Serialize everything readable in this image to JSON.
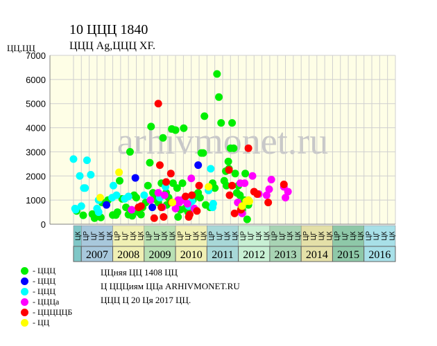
{
  "header": {
    "title": "10 ЦЦЦ 1840",
    "subtitle": "ЦЦЦ Ag,ЦЦЦ XF.",
    "yunit": "ЦЦ,ЦЦ"
  },
  "watermark": "arhivmonet.ru",
  "legend": [
    {
      "label": "- ЦЦЦ",
      "color": "#00ee00"
    },
    {
      "label": "- ЦЦЦ",
      "color": "#0000ff"
    },
    {
      "label": "- ЦЦЦ",
      "color": "#00ffff"
    },
    {
      "label": "- ЦЦЦа",
      "color": "#ff00ff"
    },
    {
      "label": "- ЦЦЦЦЦБ",
      "color": "#ff0000"
    },
    {
      "label": "- ЦЦ",
      "color": "#ffff00"
    }
  ],
  "info": [
    "ЦЦняя ЦЦ 1408 ЦЦ",
    "Ц ЦЦЦиям ЦЦа ARHIVMONET.RU",
    "ЦЦЦ Ц 20 Ця 2017 ЦЦ."
  ],
  "chart_data": {
    "type": "scatter",
    "title": "10 ЦЦЦ 1840",
    "subtitle": "ЦЦЦ Ag,ЦЦЦ XF.",
    "ylabel": "ЦЦ,ЦЦ",
    "ylim": [
      0,
      7000
    ],
    "yticks": [
      0,
      1000,
      2000,
      3000,
      4000,
      5000,
      6000,
      7000
    ],
    "grid": true,
    "xlim": [
      2006.0,
      2017.0
    ],
    "quarter_labels": [
      "ЦК",
      "ЦР",
      "ЦГ",
      "ЦК"
    ],
    "quarter_label_start": 2006.75,
    "year_bands": [
      {
        "year": "",
        "start": 2006.75,
        "end": 2007.0,
        "color": "#7fc7c7"
      },
      {
        "year": "2007",
        "start": 2007.0,
        "end": 2008.0,
        "color": "#a8c8dc"
      },
      {
        "year": "2008",
        "start": 2008.0,
        "end": 2009.0,
        "color": "#f0f0b4"
      },
      {
        "year": "2009",
        "start": 2009.0,
        "end": 2010.0,
        "color": "#b8e0b4"
      },
      {
        "year": "2010",
        "start": 2010.0,
        "end": 2011.0,
        "color": "#f0f0b4"
      },
      {
        "year": "2011",
        "start": 2011.0,
        "end": 2012.0,
        "color": "#a8d8d8"
      },
      {
        "year": "2012",
        "start": 2012.0,
        "end": 2013.0,
        "color": "#c8f0d4"
      },
      {
        "year": "2013",
        "start": 2013.0,
        "end": 2014.0,
        "color": "#a8d4b4"
      },
      {
        "year": "2014",
        "start": 2014.0,
        "end": 2015.0,
        "color": "#e4e0a8"
      },
      {
        "year": "2015",
        "start": 2015.0,
        "end": 2016.0,
        "color": "#8ec8a8"
      },
      {
        "year": "2016",
        "start": 2016.0,
        "end": 2017.0,
        "color": "#a8e0e8"
      }
    ],
    "series": [
      {
        "name": "- ЦЦЦ",
        "color": "#00ee00",
        "points": [
          [
            2006.85,
            550
          ],
          [
            2007.06,
            370
          ],
          [
            2007.35,
            420
          ],
          [
            2007.42,
            250
          ],
          [
            2007.62,
            280
          ],
          [
            2007.66,
            900
          ],
          [
            2007.85,
            1000
          ],
          [
            2008.0,
            380
          ],
          [
            2008.1,
            380
          ],
          [
            2008.15,
            500
          ],
          [
            2008.22,
            1800
          ],
          [
            2008.3,
            1050
          ],
          [
            2008.42,
            700
          ],
          [
            2008.5,
            400
          ],
          [
            2008.55,
            3000
          ],
          [
            2008.62,
            350
          ],
          [
            2008.68,
            1200
          ],
          [
            2008.75,
            1100
          ],
          [
            2008.82,
            500
          ],
          [
            2008.9,
            400
          ],
          [
            2008.95,
            700
          ],
          [
            2009.05,
            900
          ],
          [
            2009.12,
            1600
          ],
          [
            2009.18,
            2550
          ],
          [
            2009.22,
            4050
          ],
          [
            2009.28,
            1300
          ],
          [
            2009.32,
            1050
          ],
          [
            2009.45,
            900
          ],
          [
            2009.55,
            1700
          ],
          [
            2009.6,
            3580
          ],
          [
            2009.7,
            1300
          ],
          [
            2009.72,
            800
          ],
          [
            2009.78,
            1100
          ],
          [
            2009.88,
            3950
          ],
          [
            2009.92,
            1700
          ],
          [
            2010.0,
            3900
          ],
          [
            2010.05,
            1500
          ],
          [
            2010.08,
            300
          ],
          [
            2010.15,
            600
          ],
          [
            2010.22,
            1700
          ],
          [
            2010.26,
            3980
          ],
          [
            2010.3,
            650
          ],
          [
            2010.4,
            500
          ],
          [
            2010.55,
            1000
          ],
          [
            2010.62,
            1200
          ],
          [
            2010.72,
            1300
          ],
          [
            2010.78,
            1100
          ],
          [
            2010.82,
            2950
          ],
          [
            2010.88,
            2950
          ],
          [
            2010.92,
            4480
          ],
          [
            2010.96,
            800
          ],
          [
            2011.1,
            700
          ],
          [
            2011.18,
            1700
          ],
          [
            2011.25,
            1500
          ],
          [
            2011.32,
            6230
          ],
          [
            2011.38,
            5270
          ],
          [
            2011.45,
            4200
          ],
          [
            2011.55,
            1800
          ],
          [
            2011.6,
            2200
          ],
          [
            2011.62,
            1600
          ],
          [
            2011.68,
            2600
          ],
          [
            2011.7,
            2300
          ],
          [
            2011.75,
            3150
          ],
          [
            2011.8,
            4200
          ],
          [
            2011.85,
            3150
          ],
          [
            2011.9,
            2100
          ],
          [
            2011.95,
            1300
          ],
          [
            2012.0,
            1600
          ],
          [
            2012.05,
            1200
          ],
          [
            2012.1,
            700
          ],
          [
            2012.12,
            600
          ],
          [
            2012.18,
            1000
          ],
          [
            2012.22,
            2100
          ],
          [
            2012.28,
            200
          ],
          [
            2012.32,
            800
          ]
        ]
      },
      {
        "name": "- ЦЦЦ",
        "color": "#0000ff",
        "points": [
          [
            2007.8,
            800
          ],
          [
            2008.72,
            1920
          ],
          [
            2009.26,
            700
          ],
          [
            2010.72,
            2450
          ]
        ]
      },
      {
        "name": "- ЦЦЦ",
        "color": "#00ffff",
        "points": [
          [
            2006.75,
            2700
          ],
          [
            2006.8,
            650
          ],
          [
            2006.82,
            600
          ],
          [
            2006.95,
            2000
          ],
          [
            2007.0,
            750
          ],
          [
            2007.08,
            1500
          ],
          [
            2007.12,
            1500
          ],
          [
            2007.18,
            2650
          ],
          [
            2007.3,
            2050
          ],
          [
            2007.5,
            650
          ],
          [
            2007.55,
            500
          ],
          [
            2007.55,
            1000
          ],
          [
            2007.98,
            1100
          ],
          [
            2008.02,
            1600
          ],
          [
            2008.12,
            1200
          ],
          [
            2008.38,
            1050
          ],
          [
            2008.5,
            1150
          ],
          [
            2009.0,
            1200
          ],
          [
            2009.5,
            1100
          ],
          [
            2009.68,
            1550
          ],
          [
            2010.42,
            750
          ],
          [
            2010.52,
            950
          ],
          [
            2011.05,
            1400
          ],
          [
            2011.12,
            2300
          ],
          [
            2011.18,
            700
          ],
          [
            2011.2,
            850
          ]
        ]
      },
      {
        "name": "- ЦЦЦа",
        "color": "#ff00ff",
        "points": [
          [
            2008.6,
            600
          ],
          [
            2009.2,
            1000
          ],
          [
            2009.45,
            1300
          ],
          [
            2009.58,
            700
          ],
          [
            2009.65,
            1200
          ],
          [
            2010.0,
            650
          ],
          [
            2010.08,
            1000
          ],
          [
            2010.12,
            900
          ],
          [
            2010.2,
            1000
          ],
          [
            2010.38,
            850
          ],
          [
            2010.5,
            1900
          ],
          [
            2010.6,
            650
          ],
          [
            2011.98,
            900
          ],
          [
            2012.06,
            1700
          ],
          [
            2012.12,
            450
          ],
          [
            2012.2,
            1700
          ],
          [
            2012.45,
            2000
          ],
          [
            2012.65,
            1250
          ],
          [
            2012.9,
            1200
          ],
          [
            2012.98,
            1450
          ],
          [
            2013.05,
            1850
          ],
          [
            2013.45,
            1550
          ],
          [
            2013.5,
            1100
          ],
          [
            2013.58,
            1350
          ]
        ]
      },
      {
        "name": "- ЦЦЦЦЦБ",
        "color": "#ff0000",
        "points": [
          [
            2008.82,
            700
          ],
          [
            2008.9,
            750
          ],
          [
            2009.32,
            250
          ],
          [
            2009.45,
            5000
          ],
          [
            2009.5,
            2450
          ],
          [
            2009.55,
            700
          ],
          [
            2009.62,
            300
          ],
          [
            2009.7,
            1750
          ],
          [
            2009.85,
            2100
          ],
          [
            2009.88,
            900
          ],
          [
            2010.32,
            1150
          ],
          [
            2010.42,
            300
          ],
          [
            2010.45,
            400
          ],
          [
            2010.52,
            1200
          ],
          [
            2010.68,
            550
          ],
          [
            2010.75,
            1600
          ],
          [
            2011.7,
            2250
          ],
          [
            2011.72,
            1200
          ],
          [
            2011.8,
            1600
          ],
          [
            2011.88,
            450
          ],
          [
            2012.08,
            600
          ],
          [
            2012.32,
            3150
          ],
          [
            2012.5,
            1350
          ],
          [
            2012.6,
            1250
          ],
          [
            2012.95,
            900
          ],
          [
            2013.45,
            1650
          ]
        ]
      },
      {
        "name": "- ЦЦ",
        "color": "#ffff00",
        "points": [
          [
            2007.6,
            1100
          ],
          [
            2008.2,
            2150
          ],
          [
            2009.9,
            900
          ],
          [
            2011.05,
            1550
          ],
          [
            2012.12,
            750
          ],
          [
            2012.25,
            950
          ],
          [
            2012.32,
            1000
          ],
          [
            2012.35,
            950
          ]
        ]
      }
    ]
  }
}
